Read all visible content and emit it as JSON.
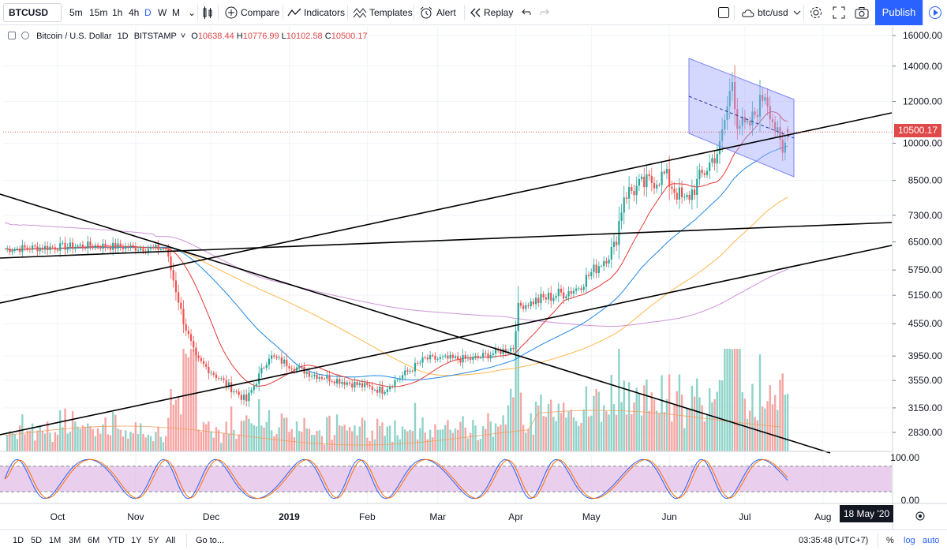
{
  "toolbar": {
    "symbol": "BTCUSD",
    "intervals": [
      "5m",
      "15m",
      "1h",
      "4h",
      "D",
      "W",
      "M"
    ],
    "active_interval": "D",
    "compare_label": "Compare",
    "indicators_label": "Indicators",
    "templates_label": "Templates",
    "alert_label": "Alert",
    "replay_label": "Replay",
    "layout_name": "btc/usd",
    "publish_label": "Publish"
  },
  "legend": {
    "title": "Bitcoin / U.S. Dollar",
    "interval": "1D",
    "exchange": "BITSTAMP",
    "o_label": "O",
    "o": "10638.44",
    "h_label": "H",
    "h": "10776.99",
    "l_label": "L",
    "l": "10102.58",
    "c_label": "C",
    "c": "10500.17"
  },
  "price_axis": {
    "labels": [
      "16000.00",
      "14000.00",
      "12000.00",
      "10000.00",
      "8500.00",
      "7300.00",
      "6500.00",
      "5750.00",
      "5150.00",
      "4550.00",
      "3950.00",
      "3550.00",
      "3150.00",
      "2830.00"
    ],
    "last_price": "10500.17",
    "last_price_color": "#e04949"
  },
  "osc_axis": {
    "labels": [
      "100.00",
      "0.00"
    ]
  },
  "time_axis": {
    "labels": [
      "Oct",
      "Nov",
      "Dec",
      "2019",
      "Feb",
      "Mar",
      "Apr",
      "May",
      "Jun",
      "Jul",
      "Aug"
    ],
    "crosshair_date": "18 May '20"
  },
  "bottombar": {
    "ranges": [
      "1D",
      "5D",
      "1M",
      "3M",
      "6M",
      "YTD",
      "1Y",
      "5Y",
      "All"
    ],
    "goto_label": "Go to...",
    "clock": "03:35:48 (UTC+7)",
    "percent_label": "%",
    "log_label": "log",
    "auto_label": "auto"
  },
  "chart_data": {
    "type": "candlestick",
    "symbol": "BTCUSD",
    "interval": "1D",
    "x_start": "2018-09-10",
    "x_end": "2019-07-18",
    "x_axis_end": "2019-08-16",
    "y_scale": "log",
    "ylim": [
      2600,
      16800
    ],
    "key_points": [
      {
        "date": "2018-09-10",
        "close": 6300
      },
      {
        "date": "2018-10-15",
        "close": 6400
      },
      {
        "date": "2018-11-13",
        "close": 6300
      },
      {
        "date": "2018-11-20",
        "close": 4600
      },
      {
        "date": "2018-11-25",
        "close": 3900
      },
      {
        "date": "2018-12-15",
        "close": 3250
      },
      {
        "date": "2018-12-24",
        "close": 3950
      },
      {
        "date": "2019-01-10",
        "close": 3650
      },
      {
        "date": "2019-02-07",
        "close": 3400
      },
      {
        "date": "2019-02-24",
        "close": 3900
      },
      {
        "date": "2019-03-15",
        "close": 3900
      },
      {
        "date": "2019-03-31",
        "close": 4100
      },
      {
        "date": "2019-04-02",
        "close": 4900
      },
      {
        "date": "2019-04-25",
        "close": 5300
      },
      {
        "date": "2019-05-10",
        "close": 6300
      },
      {
        "date": "2019-05-14",
        "close": 8000
      },
      {
        "date": "2019-05-30",
        "close": 8700
      },
      {
        "date": "2019-06-07",
        "close": 7700
      },
      {
        "date": "2019-06-21",
        "close": 9800
      },
      {
        "date": "2019-06-26",
        "close": 13200
      },
      {
        "date": "2019-06-28",
        "close": 11000
      },
      {
        "date": "2019-07-02",
        "close": 10600
      },
      {
        "date": "2019-07-09",
        "close": 12500
      },
      {
        "date": "2019-07-16",
        "close": 9500
      },
      {
        "date": "2019-07-18",
        "close": 10500.17
      }
    ],
    "last": {
      "open": 10638.44,
      "high": 10776.99,
      "low": 10102.58,
      "close": 10500.17
    },
    "oscillator": {
      "type": "stochastic RSI",
      "ylim": [
        0,
        100
      ],
      "upper_band": 80,
      "lower_band": 20
    },
    "colors": {
      "up": "#26a69a",
      "down": "#ef5350",
      "ma_fast": "#e53935",
      "ma_mid": "#1e88e5",
      "ma_slow": "#ffb74d",
      "ma_long": "#ce93d8",
      "channel_fill": "#9fa8ff"
    }
  }
}
